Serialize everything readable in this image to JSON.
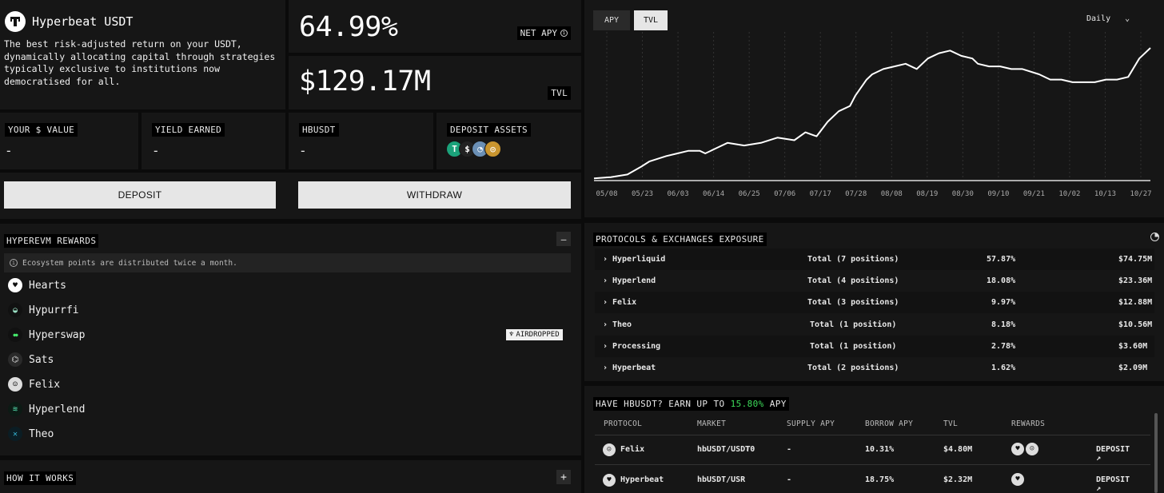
{
  "vault": {
    "name": "Hyperbeat USDT",
    "description": "The best risk-adjusted return on your USDT, dynamically allocating capital through strategies typically exclusive to institutions now democratised for all.",
    "net_apy_value": "64.99%",
    "net_apy_label": "NET APY",
    "tvl_value": "$129.17M",
    "tvl_label": "TVL"
  },
  "stats": {
    "your_value_label": "YOUR $ VALUE",
    "your_value": "-",
    "yield_label": "YIELD EARNED",
    "yield_value": "-",
    "hbusdt_label": "HBUSDT",
    "hbusdt_value": "-",
    "deposit_assets_label": "DEPOSIT ASSETS",
    "deposit_assets": [
      {
        "icon": "tether-icon",
        "color": "#1ba27a",
        "glyph": "T"
      },
      {
        "icon": "usd-icon",
        "color": "#222",
        "glyph": "$"
      },
      {
        "icon": "token-icon",
        "color": "#6a8fb5",
        "glyph": "◔"
      },
      {
        "icon": "gold-token-icon",
        "color": "#c9952f",
        "glyph": "◎"
      }
    ]
  },
  "actions": {
    "deposit": "DEPOSIT",
    "withdraw": "WITHDRAW"
  },
  "rewards": {
    "title": "HYPEREVM REWARDS",
    "collapse_glyph": "—",
    "info": "Ecosystem points are distributed twice a month.",
    "items": [
      {
        "name": "Hearts",
        "icon": "hearts-icon"
      },
      {
        "name": "Hypurrfi",
        "icon": "hypurrfi-icon"
      },
      {
        "name": "Hyperswap",
        "icon": "hyperswap-icon",
        "badge": "AIRDROPPED"
      },
      {
        "name": "Sats",
        "icon": "sats-icon"
      },
      {
        "name": "Felix",
        "icon": "felix-icon"
      },
      {
        "name": "Hyperlend",
        "icon": "hyperlend-icon"
      },
      {
        "name": "Theo",
        "icon": "theo-icon"
      }
    ]
  },
  "how_it_works": {
    "title": "HOW IT WORKS",
    "expand_glyph": "+"
  },
  "chart_tabs": {
    "apy": "APY",
    "tvl": "TVL",
    "active": "TVL",
    "period": "Daily"
  },
  "chart_data": {
    "type": "line",
    "x_ticks": [
      "05/08",
      "05/23",
      "06/03",
      "06/14",
      "06/25",
      "07/06",
      "07/17",
      "07/28",
      "08/08",
      "08/19",
      "08/30",
      "09/10",
      "09/21",
      "10/02",
      "10/13",
      "10/27"
    ],
    "x": [
      0,
      0.03,
      0.06,
      0.085,
      0.1,
      0.13,
      0.15,
      0.17,
      0.19,
      0.2,
      0.22,
      0.24,
      0.27,
      0.3,
      0.33,
      0.36,
      0.38,
      0.4,
      0.42,
      0.44,
      0.46,
      0.47,
      0.49,
      0.5,
      0.52,
      0.54,
      0.56,
      0.58,
      0.6,
      0.62,
      0.64,
      0.66,
      0.68,
      0.69,
      0.71,
      0.73,
      0.75,
      0.77,
      0.8,
      0.82,
      0.84,
      0.86,
      0.88,
      0.9,
      0.92,
      0.94,
      0.96,
      0.98,
      1.0
    ],
    "y": [
      1,
      2,
      4,
      10,
      14,
      18,
      20,
      22,
      22,
      20,
      24,
      28,
      26,
      28,
      32,
      30,
      36,
      33,
      44,
      52,
      56,
      64,
      76,
      80,
      84,
      86,
      88,
      84,
      92,
      96,
      98,
      94,
      92,
      88,
      86,
      86,
      84,
      84,
      80,
      76,
      76,
      74,
      74,
      74,
      76,
      76,
      78,
      92,
      100
    ],
    "title": "",
    "xlabel": "",
    "ylabel": "",
    "grid": "vertical dashed",
    "line_color": "#ffffff"
  },
  "exposure": {
    "title": "PROTOCOLS & EXCHANGES EXPOSURE",
    "rows": [
      {
        "name": "Hyperliquid",
        "positions": "Total (7 positions)",
        "pct": "57.87%",
        "amount": "$74.75M"
      },
      {
        "name": "Hyperlend",
        "positions": "Total (4 positions)",
        "pct": "18.08%",
        "amount": "$23.36M"
      },
      {
        "name": "Felix",
        "positions": "Total (3 positions)",
        "pct": "9.97%",
        "amount": "$12.88M"
      },
      {
        "name": "Theo",
        "positions": "Total (1 position)",
        "pct": "8.18%",
        "amount": "$10.56M"
      },
      {
        "name": "Processing",
        "positions": "Total (1 position)",
        "pct": "2.78%",
        "amount": "$3.60M"
      },
      {
        "name": "Hyperbeat",
        "positions": "Total (2 positions)",
        "pct": "1.62%",
        "amount": "$2.09M"
      }
    ]
  },
  "earn": {
    "title_prefix": "HAVE HBUSDT? EARN UP TO",
    "title_apy": "15.80%",
    "title_suffix": "APY",
    "apy_color": "#3ddc5a",
    "headers": [
      "PROTOCOL",
      "MARKET",
      "SUPPLY APY",
      "BORROW APY",
      "TVL",
      "REWARDS"
    ],
    "rows": [
      {
        "protocol": "Felix",
        "market": "hbUSDT/USD₮0",
        "supply": "-",
        "borrow": "10.31%",
        "tvl": "$4.80M",
        "action": "DEPOSIT ↗"
      },
      {
        "protocol": "Hyperbeat",
        "market": "hbUSDT/USR",
        "supply": "-",
        "borrow": "18.75%",
        "tvl": "$2.32M",
        "action": "DEPOSIT ↗"
      }
    ]
  }
}
